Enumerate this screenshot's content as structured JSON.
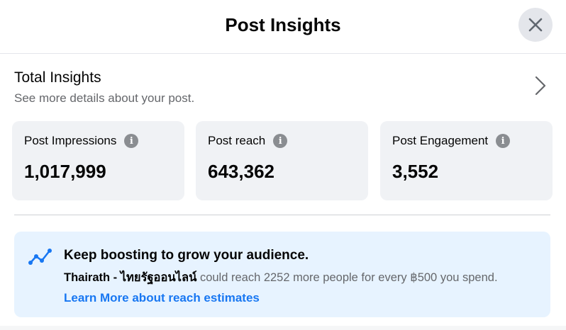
{
  "header": {
    "title": "Post Insights",
    "close_icon": "close-icon"
  },
  "total_insights": {
    "title": "Total Insights",
    "subtitle": "See more details about your post.",
    "icon": "chevron-right-icon"
  },
  "metrics": [
    {
      "label": "Post Impressions",
      "value": "1,017,999"
    },
    {
      "label": "Post reach",
      "value": "643,362"
    },
    {
      "label": "Post Engagement",
      "value": "3,552"
    }
  ],
  "info_glyph": "i",
  "boost_banner": {
    "icon": "trending-up-icon",
    "title": "Keep boosting to grow your audience.",
    "page_name": "Thairath - ไทยรัฐออนไลน์",
    "body_text": " could reach 2252 more people for every ฿500 you spend.",
    "link_text": "Learn More about reach estimates"
  },
  "colors": {
    "link": "#1877f2",
    "card_bg": "#f0f2f5",
    "banner_bg": "#e7f3ff"
  }
}
